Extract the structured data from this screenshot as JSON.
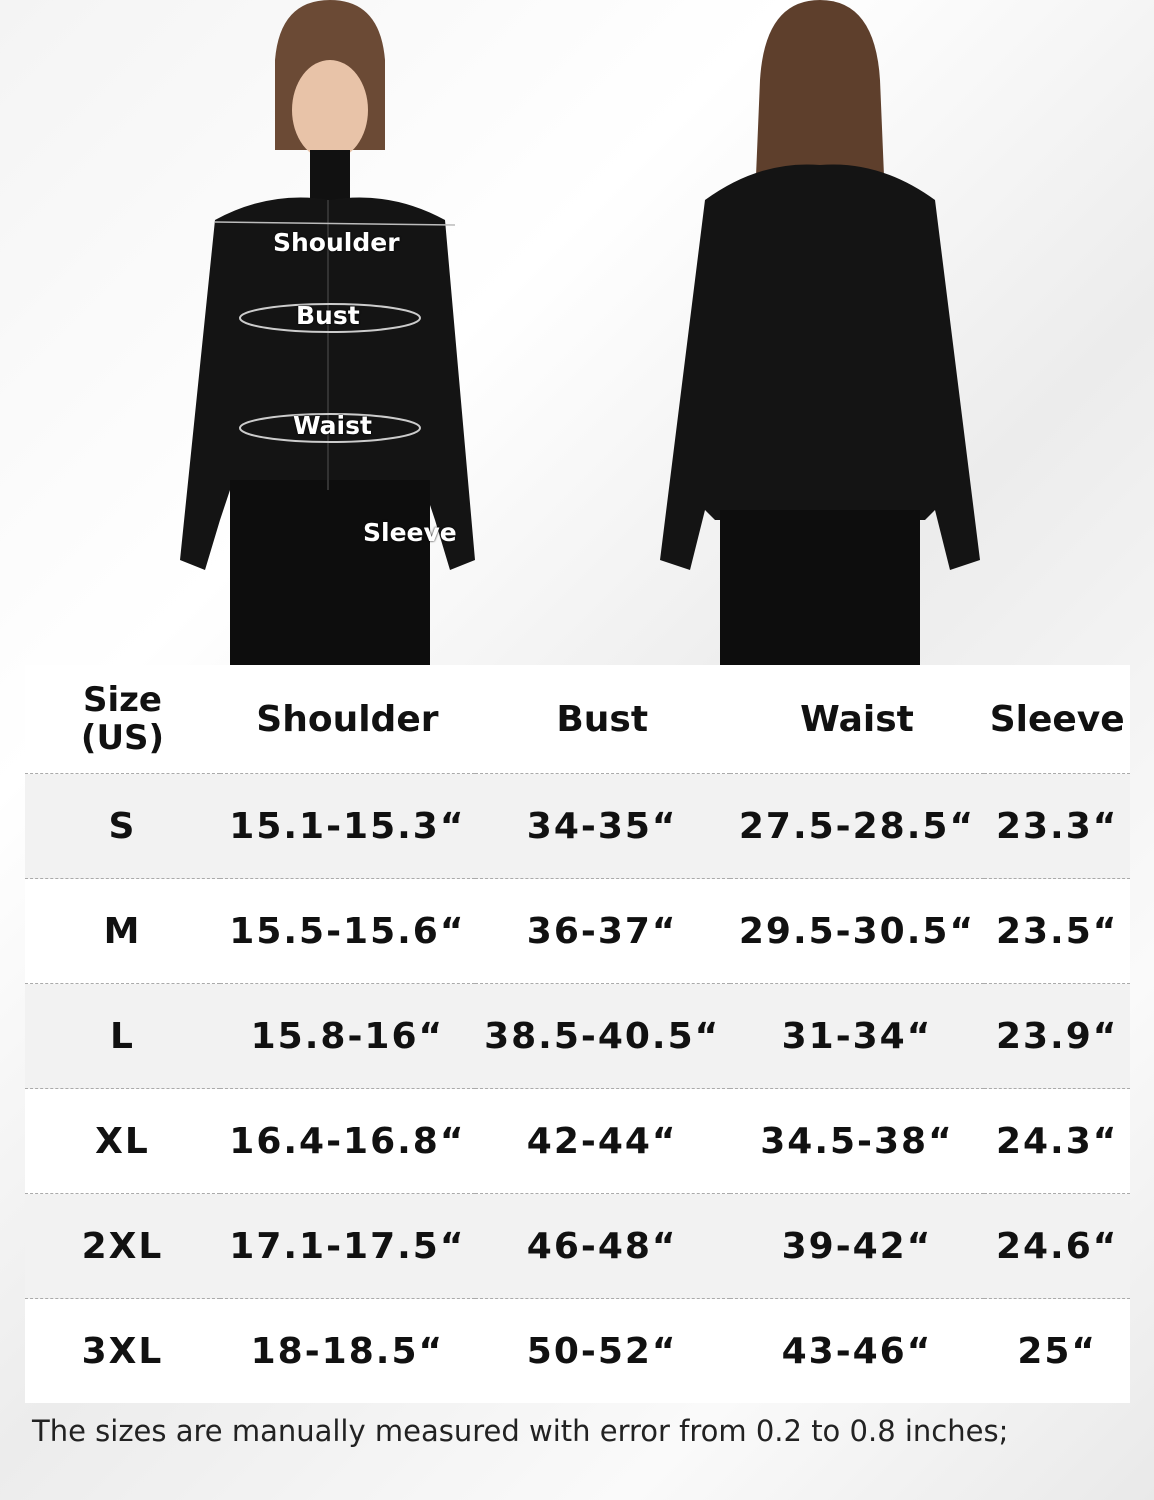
{
  "measure_labels": {
    "shoulder": "Shoulder",
    "bust": "Bust",
    "waist": "Waist",
    "sleeve": "Sleeve"
  },
  "table": {
    "headers": [
      "Size\n(US)",
      "Shoulder",
      "Bust",
      "Waist",
      "Sleeve"
    ],
    "rows": [
      [
        "S",
        "15.1-15.3“",
        "34-35“",
        "27.5-28.5“",
        "23.3“"
      ],
      [
        "M",
        "15.5-15.6“",
        "36-37“",
        "29.5-30.5“",
        "23.5“"
      ],
      [
        "L",
        "15.8-16“",
        "38.5-40.5“",
        "31-34“",
        "23.9“"
      ],
      [
        "XL",
        "16.4-16.8“",
        "42-44“",
        "34.5-38“",
        "24.3“"
      ],
      [
        "2XL",
        "17.1-17.5“",
        "46-48“",
        "39-42“",
        "24.6“"
      ],
      [
        "3XL",
        "18-18.5“",
        "50-52“",
        "43-46“",
        "25“"
      ]
    ]
  },
  "note": "The sizes are manually measured with error from 0.2 to 0.8 inches;",
  "colors": {
    "jacket": "#141414",
    "row_alt": "#f2f2f2"
  }
}
